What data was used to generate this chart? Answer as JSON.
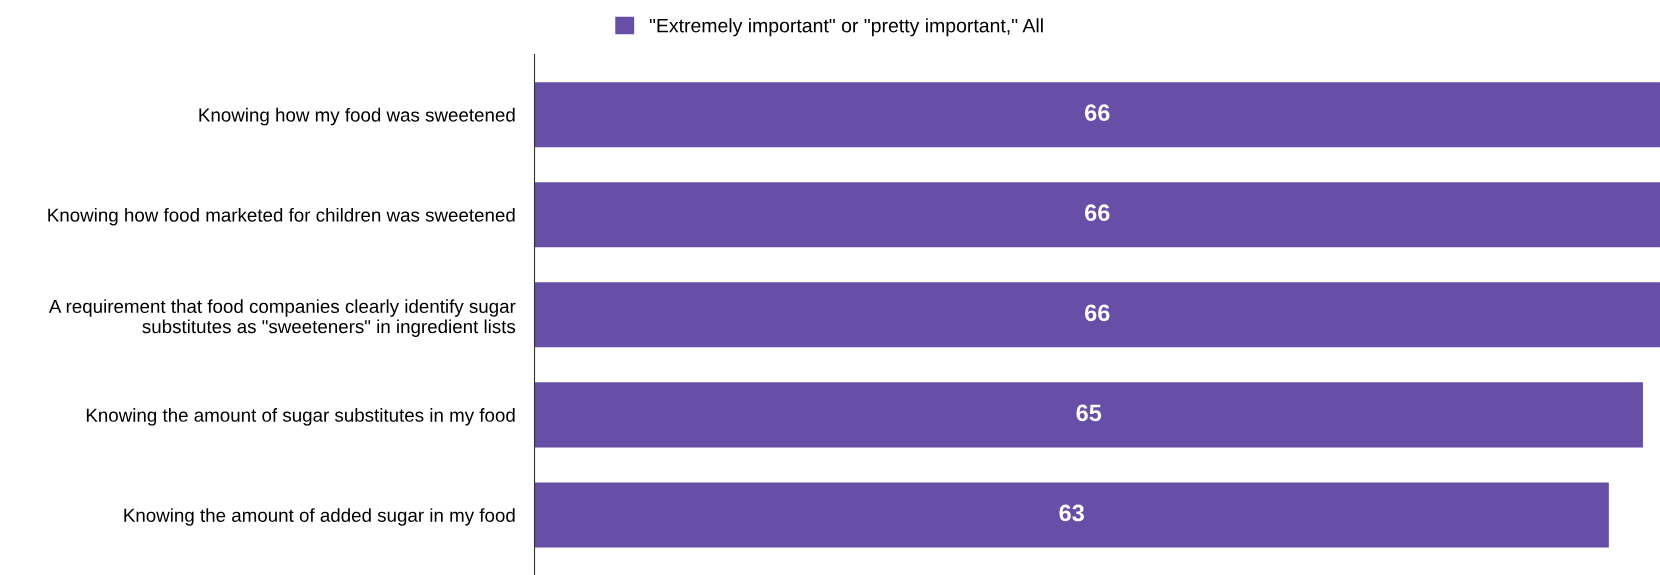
{
  "chart_data": {
    "type": "bar",
    "orientation": "horizontal",
    "categories": [
      "Knowing how my food was sweetened",
      "Knowing how food marketed for children was sweetened",
      "A requirement that food companies clearly identify sugar substitutes as \"sweeteners\" in ingredient lists",
      "Knowing the amount of sugar substitutes in my food",
      "Knowing the amount of added sugar in my food"
    ],
    "series": [
      {
        "name": "\"Extremely important\" or \"pretty important,\" All",
        "color": "#674ea7",
        "values": [
          66,
          66,
          66,
          65,
          63
        ]
      }
    ],
    "xlim": [
      0,
      66
    ],
    "data_labels": true,
    "legend": "top",
    "grid": false,
    "tick_labels": "y"
  }
}
